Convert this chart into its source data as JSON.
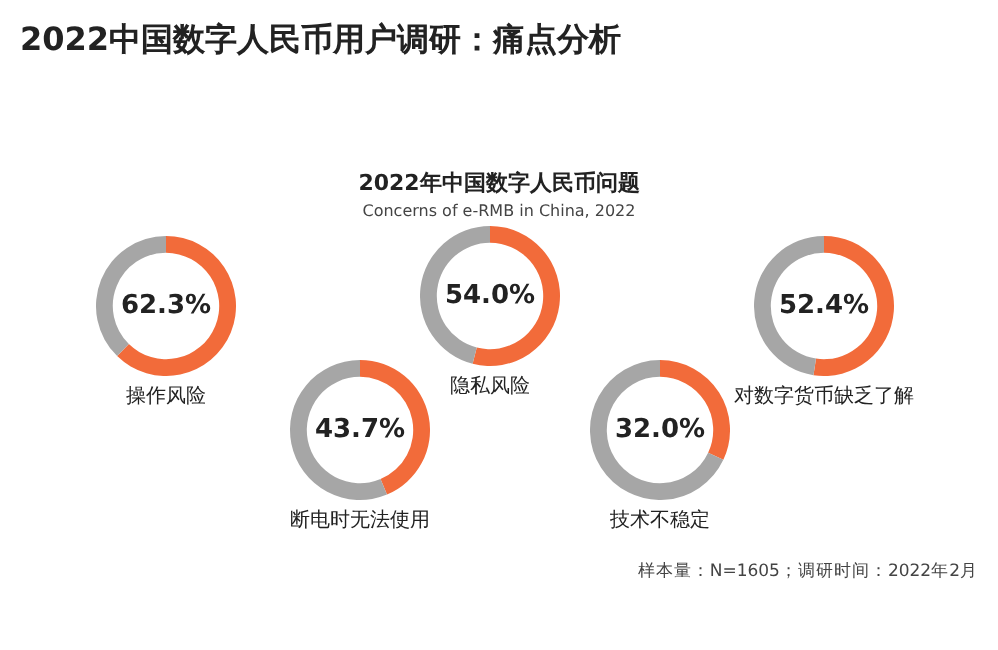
{
  "chart_data": [
    {
      "type": "other",
      "title": "2022中国数字人民币用户调研：痛点分析",
      "subtitle": "2022年中国数字人民币问题",
      "annotations": [
        "Concerns of e-RMB in China, 2022",
        "样本量：N=1605；调研时间：2022年2月"
      ]
    },
    {
      "type": "donut",
      "title": "操作风险",
      "categories": [
        null,
        null
      ],
      "values": [
        62.3,
        37.7
      ],
      "colors": [
        "#f26b3a",
        "#a6a6a6"
      ],
      "value_labels": [
        "62.3%",
        null
      ]
    },
    {
      "type": "donut",
      "title": "隐私风险",
      "categories": [
        null,
        null
      ],
      "values": [
        54.0,
        46.0
      ],
      "colors": [
        "#f26b3a",
        "#a6a6a6"
      ],
      "value_labels": [
        "54.0%",
        null
      ]
    },
    {
      "type": "donut",
      "title": "对数字货币缺乏了解",
      "categories": [
        null,
        null
      ],
      "values": [
        52.4,
        47.6
      ],
      "colors": [
        "#f26b3a",
        "#a6a6a6"
      ],
      "value_labels": [
        "52.4%",
        null
      ]
    },
    {
      "type": "donut",
      "title": "断电时无法使用",
      "categories": [
        null,
        null
      ],
      "values": [
        43.7,
        56.3
      ],
      "colors": [
        "#f26b3a",
        "#a6a6a6"
      ],
      "value_labels": [
        "43.7%",
        null
      ]
    },
    {
      "type": "donut",
      "title": "技术不稳定",
      "categories": [
        null,
        null
      ],
      "values": [
        32.0,
        68.0
      ],
      "colors": [
        "#f26b3a",
        "#a6a6a6"
      ],
      "value_labels": [
        "32.0%",
        null
      ]
    }
  ]
}
